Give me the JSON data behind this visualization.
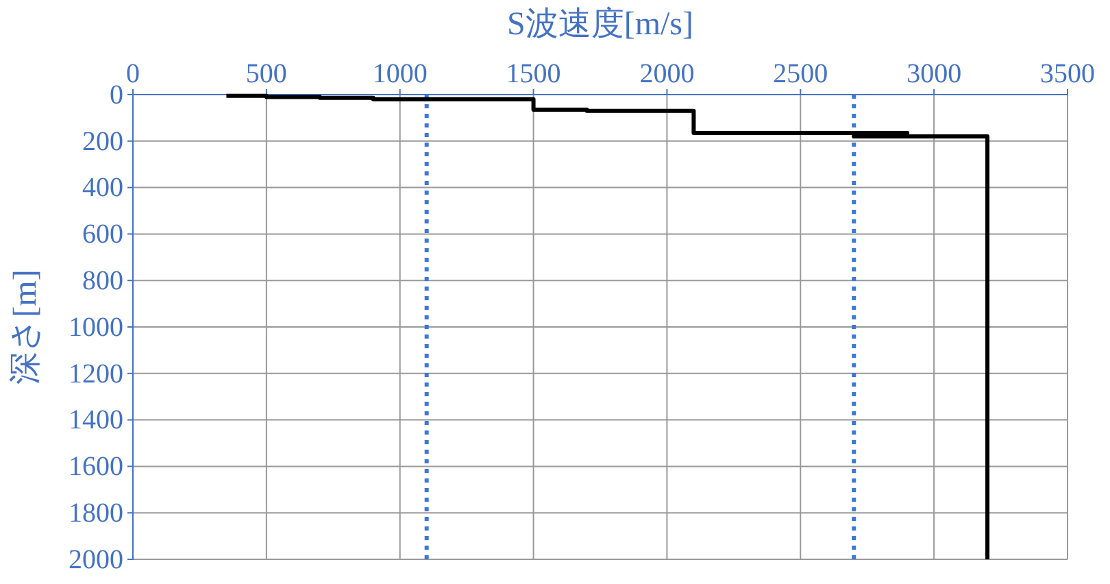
{
  "chart_data": {
    "type": "line",
    "xlabel": "S波速度[m/s]",
    "ylabel": "深さ[m]",
    "xlim": [
      0,
      3500
    ],
    "xticks": [
      0,
      500,
      1000,
      1500,
      2000,
      2500,
      3000,
      3500
    ],
    "ylim": [
      2000,
      0
    ],
    "yticks": [
      0,
      200,
      400,
      600,
      800,
      1000,
      1200,
      1400,
      1600,
      1800,
      2000
    ],
    "grid": true,
    "marker": "none",
    "line_style": "solid",
    "series": [
      {
        "color": "#000000",
        "x": [
          350,
          500,
          500,
          700,
          700,
          900,
          900,
          1500,
          1500,
          1700,
          1700,
          2100,
          2100,
          2900,
          2700,
          3200,
          3200
        ],
        "values": [
          5,
          5,
          10,
          10,
          14,
          14,
          20,
          20,
          65,
          65,
          70,
          70,
          165,
          165,
          180,
          180,
          2000
        ]
      }
    ],
    "ref_lines": [
      {
        "axis": "x",
        "value": 1100,
        "color": "#3c78d8",
        "line_style": "dotted"
      },
      {
        "axis": "x",
        "value": 2700,
        "color": "#3c78d8",
        "line_style": "dotted"
      }
    ]
  }
}
